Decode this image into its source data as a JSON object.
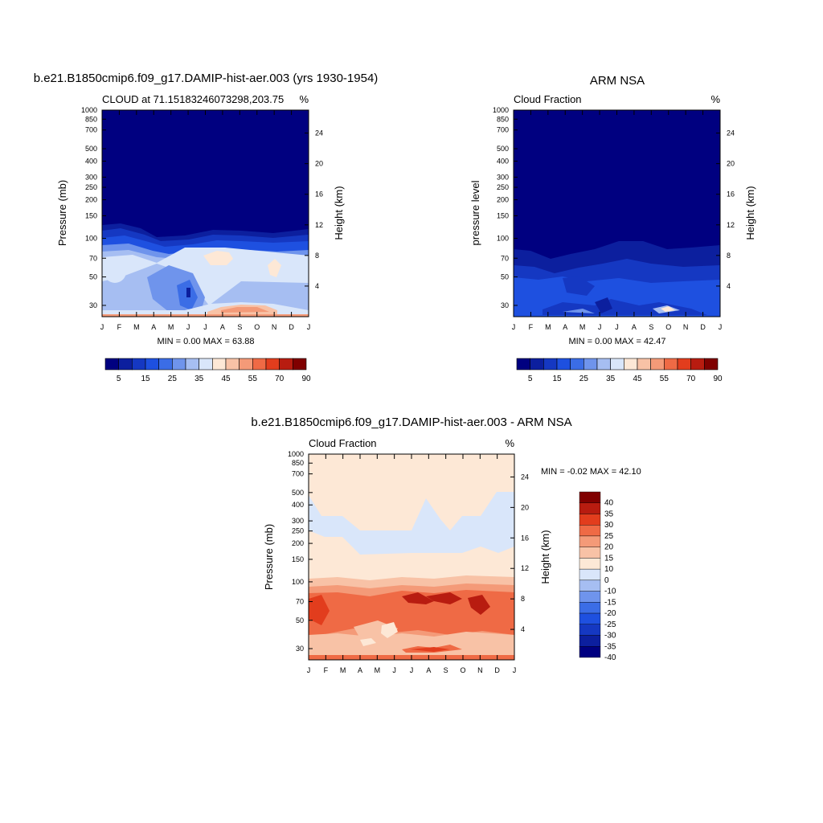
{
  "chart_data": [
    {
      "type": "heatmap",
      "title": "b.e21.B1850cmip6.f09_g17.DAMIP-hist-aer.003 (yrs 1930-1954)",
      "subtitle_left": "CLOUD at 71.15183246073298,203.75",
      "subtitle_right": "%",
      "ylabel": "Pressure (mb)",
      "y2label": "Height (km)",
      "x": [
        "J",
        "F",
        "M",
        "A",
        "M",
        "J",
        "J",
        "A",
        "S",
        "O",
        "N",
        "D",
        "J"
      ],
      "yticks": [
        "30",
        "50",
        "70",
        "100",
        "150",
        "200",
        "250",
        "300",
        "400",
        "500",
        "700",
        "850",
        "1000"
      ],
      "y2ticks": [
        "24",
        "20",
        "16",
        "12",
        "8",
        "4"
      ],
      "stats": "MIN =   0.00 MAX =  63.88",
      "colorbar_labels": [
        "5",
        "15",
        "25",
        "35",
        "45",
        "55",
        "70",
        "90"
      ],
      "levels": [
        5,
        10,
        15,
        20,
        25,
        30,
        35,
        40,
        45,
        50,
        55,
        60,
        70,
        80,
        90
      ]
    },
    {
      "type": "heatmap",
      "title": "ARM NSA",
      "subtitle_left": "Cloud Fraction",
      "subtitle_right": "%",
      "ylabel": "pressure level",
      "y2label": "Height (km)",
      "x": [
        "J",
        "F",
        "M",
        "A",
        "M",
        "J",
        "J",
        "A",
        "S",
        "O",
        "N",
        "D",
        "J"
      ],
      "yticks": [
        "30",
        "50",
        "70",
        "100",
        "150",
        "200",
        "250",
        "300",
        "400",
        "500",
        "700",
        "850",
        "1000"
      ],
      "y2ticks": [
        "24",
        "20",
        "16",
        "12",
        "8",
        "4"
      ],
      "stats": "MIN =   0.00 MAX =  42.47",
      "colorbar_labels": [
        "5",
        "15",
        "25",
        "35",
        "45",
        "55",
        "70",
        "90"
      ],
      "levels": [
        5,
        10,
        15,
        20,
        25,
        30,
        35,
        40,
        45,
        50,
        55,
        60,
        70,
        80,
        90
      ]
    },
    {
      "type": "heatmap",
      "title": "b.e21.B1850cmip6.f09_g17.DAMIP-hist-aer.003 - ARM NSA",
      "subtitle_left": "Cloud Fraction",
      "subtitle_right": "%",
      "ylabel": "Pressure (mb)",
      "y2label": "Height (km)",
      "x": [
        "J",
        "F",
        "M",
        "A",
        "M",
        "J",
        "J",
        "A",
        "S",
        "O",
        "N",
        "D",
        "J"
      ],
      "yticks": [
        "30",
        "50",
        "70",
        "100",
        "150",
        "200",
        "250",
        "300",
        "400",
        "500",
        "700",
        "850",
        "1000"
      ],
      "y2ticks": [
        "24",
        "20",
        "16",
        "12",
        "8",
        "4"
      ],
      "stats": "MIN =  -0.02 MAX =  42.10",
      "colorbar_labels": [
        "40",
        "35",
        "30",
        "25",
        "20",
        "15",
        "10",
        "0",
        "-10",
        "-15",
        "-20",
        "-25",
        "-30",
        "-35",
        "-40"
      ]
    }
  ],
  "colors": {
    "model_scale": [
      "#000080",
      "#0c1f9e",
      "#1538c2",
      "#1e50e0",
      "#3b6de6",
      "#6f94ec",
      "#a6bef2",
      "#d9e6fa",
      "#fde8d6",
      "#f8c2a6",
      "#f49a78",
      "#ef6a45",
      "#e23d1d",
      "#b81c10",
      "#800000"
    ],
    "diff_scale": [
      "#800000",
      "#b81c10",
      "#e23d1d",
      "#ef6a45",
      "#f49a78",
      "#f8c2a6",
      "#fde8d6",
      "#d9e6fa",
      "#a6bef2",
      "#6f94ec",
      "#3b6de6",
      "#1e50e0",
      "#1538c2",
      "#0c1f9e",
      "#000080"
    ]
  }
}
